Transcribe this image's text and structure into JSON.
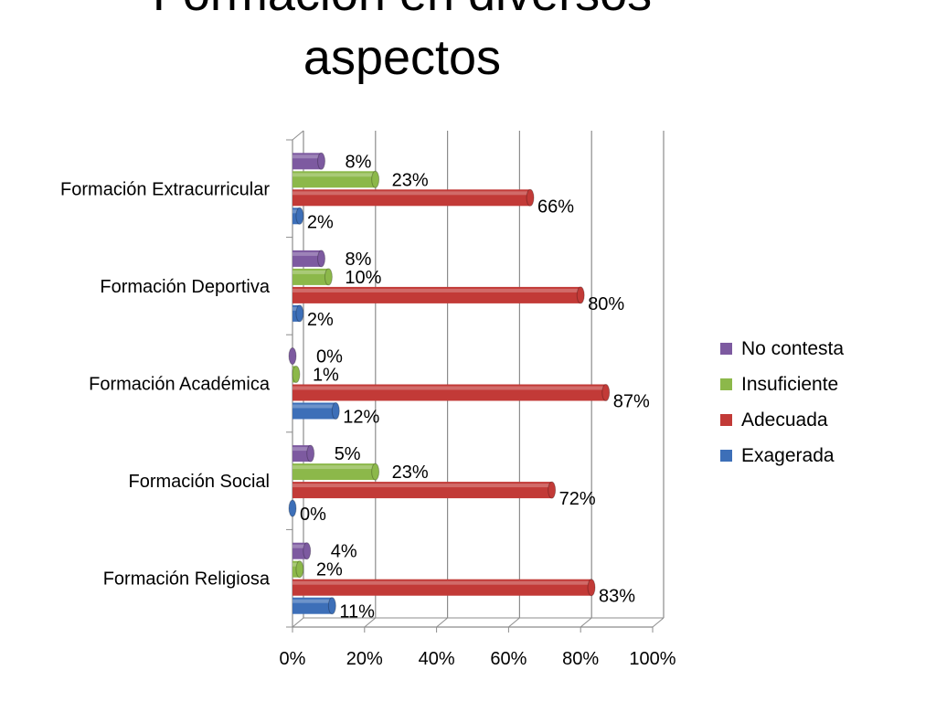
{
  "title_lines": [
    "Formación en diversos",
    "aspectos"
  ],
  "colors": {
    "No contesta": "#7d5aa0",
    "Insuficiente": "#8cb84a",
    "Adecuada": "#c23a37",
    "Exagerada": "#3d6fb8"
  },
  "chart_data": {
    "type": "bar",
    "orientation": "horizontal",
    "title": "Formación en diversos aspectos",
    "categories": [
      "Formación Extracurricular",
      "Formación Deportiva",
      "Formación Académica",
      "Formación Social",
      "Formación Religiosa"
    ],
    "series": [
      {
        "name": "No contesta",
        "values": [
          8,
          8,
          0,
          5,
          4
        ],
        "labels": [
          "8%",
          "8%",
          "0%",
          "5%",
          "4%"
        ]
      },
      {
        "name": "Insuficiente",
        "values": [
          23,
          10,
          1,
          23,
          2
        ],
        "labels": [
          "23%",
          "10%",
          "1%",
          "23%",
          "2%"
        ]
      },
      {
        "name": "Adecuada",
        "values": [
          66,
          80,
          87,
          72,
          83
        ],
        "labels": [
          "66%",
          "80%",
          "87%",
          "72%",
          "83%"
        ]
      },
      {
        "name": "Exagerada",
        "values": [
          2,
          2,
          12,
          0,
          11
        ],
        "labels": [
          "2%",
          "2%",
          "12%",
          "0%",
          "11%"
        ]
      }
    ],
    "x_ticks": [
      "0%",
      "20%",
      "40%",
      "60%",
      "80%",
      "100%"
    ],
    "xlim": [
      0,
      100
    ],
    "grid": true,
    "legend_position": "right"
  }
}
